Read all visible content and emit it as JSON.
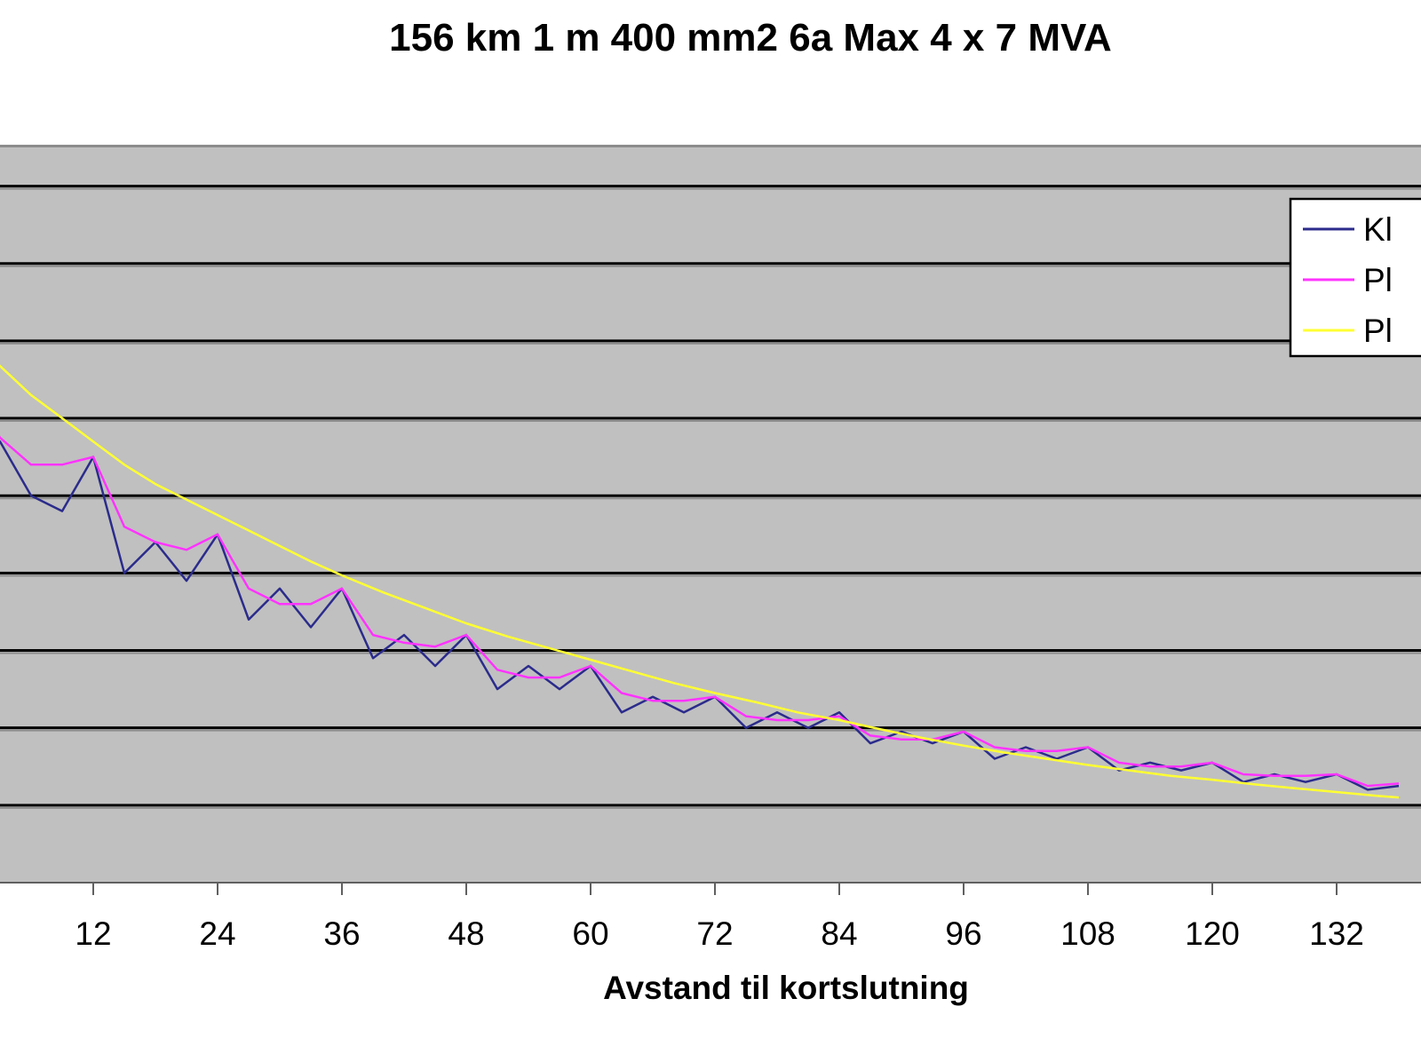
{
  "chart_data": {
    "type": "line",
    "title": "156 km 1 m 400 mm2 6a Max 4 x 7 MVA",
    "xlabel": "Avstand til kortslutning",
    "ylabel": "",
    "x_tick_labels": [
      "12",
      "24",
      "36",
      "48",
      "60",
      "72",
      "84",
      "96",
      "108",
      "120",
      "132"
    ],
    "xlim": [
      0,
      138
    ],
    "ylim": [
      0,
      9.5
    ],
    "gridlines_y": [
      1,
      2,
      3,
      4,
      5,
      6,
      7,
      8,
      9
    ],
    "grid": true,
    "legend_position": "top-right",
    "legend": [
      "Kl",
      "Pl",
      "Pl"
    ],
    "series": [
      {
        "name": "Kl",
        "color": "#2b2b8c",
        "x": [
          0,
          3,
          6,
          9,
          12,
          15,
          18,
          21,
          24,
          27,
          30,
          33,
          36,
          39,
          42,
          45,
          48,
          51,
          54,
          57,
          60,
          63,
          66,
          69,
          72,
          75,
          78,
          81,
          84,
          87,
          90,
          93,
          96,
          99,
          102,
          105,
          108,
          111,
          114,
          117,
          120,
          123,
          126,
          129,
          132,
          135,
          138
        ],
        "y": [
          5.2,
          5.7,
          5.0,
          4.8,
          5.5,
          4.0,
          4.4,
          3.9,
          4.5,
          3.4,
          3.8,
          3.3,
          3.8,
          2.9,
          3.2,
          2.8,
          3.2,
          2.5,
          2.8,
          2.5,
          2.8,
          2.2,
          2.4,
          2.2,
          2.4,
          2.0,
          2.2,
          2.0,
          2.2,
          1.8,
          1.95,
          1.8,
          1.95,
          1.6,
          1.75,
          1.6,
          1.75,
          1.45,
          1.55,
          1.45,
          1.55,
          1.3,
          1.4,
          1.3,
          1.4,
          1.2,
          1.25
        ]
      },
      {
        "name": "Pl",
        "color": "#ff33ff",
        "x": [
          0,
          1.5,
          3,
          6,
          9,
          12,
          15,
          18,
          21,
          24,
          27,
          30,
          33,
          36,
          39,
          42,
          45,
          48,
          51,
          54,
          57,
          60,
          63,
          66,
          69,
          72,
          75,
          78,
          81,
          84,
          87,
          90,
          93,
          96,
          99,
          102,
          105,
          108,
          111,
          114,
          117,
          120,
          123,
          126,
          129,
          132,
          135,
          138
        ],
        "y": [
          6.3,
          6.05,
          5.75,
          5.4,
          5.4,
          5.5,
          4.6,
          4.4,
          4.3,
          4.5,
          3.8,
          3.6,
          3.6,
          3.8,
          3.2,
          3.1,
          3.05,
          3.2,
          2.75,
          2.65,
          2.65,
          2.8,
          2.45,
          2.35,
          2.35,
          2.4,
          2.15,
          2.1,
          2.1,
          2.15,
          1.9,
          1.85,
          1.85,
          1.95,
          1.75,
          1.7,
          1.7,
          1.75,
          1.55,
          1.5,
          1.5,
          1.55,
          1.4,
          1.38,
          1.38,
          1.4,
          1.25,
          1.28
        ]
      },
      {
        "name": "Pl",
        "color": "#ffff33",
        "x": [
          0,
          2,
          4,
          6,
          8,
          10,
          12,
          15,
          18,
          21,
          24,
          27,
          30,
          33,
          36,
          40,
          44,
          48,
          52,
          56,
          60,
          64,
          68,
          72,
          76,
          80,
          84,
          88,
          92,
          96,
          100,
          104,
          108,
          112,
          116,
          120,
          124,
          128,
          132,
          136,
          138
        ],
        "y": [
          7.1,
          6.8,
          6.55,
          6.3,
          6.1,
          5.9,
          5.7,
          5.4,
          5.15,
          4.95,
          4.75,
          4.55,
          4.35,
          4.15,
          3.97,
          3.75,
          3.55,
          3.35,
          3.18,
          3.03,
          2.88,
          2.73,
          2.58,
          2.45,
          2.33,
          2.2,
          2.1,
          1.98,
          1.87,
          1.77,
          1.68,
          1.6,
          1.52,
          1.45,
          1.38,
          1.33,
          1.27,
          1.22,
          1.17,
          1.12,
          1.1
        ]
      }
    ]
  }
}
